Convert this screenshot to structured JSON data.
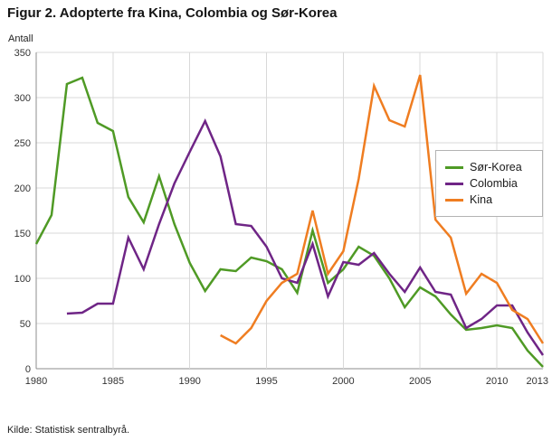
{
  "title": "Figur 2. Adopterte fra Kina, Colombia og Sør-Korea",
  "source": "Kilde: Statistisk sentralbyrå.",
  "chart_data": {
    "type": "line",
    "title": "Figur 2. Adopterte fra Kina, Colombia og Sør-Korea",
    "xlabel": "",
    "ylabel": "Antall",
    "xlim": [
      1980,
      2013
    ],
    "ylim": [
      0,
      350
    ],
    "x_ticks": [
      1980,
      1985,
      1990,
      1995,
      2000,
      2005,
      2010,
      2013
    ],
    "y_ticks": [
      0,
      50,
      100,
      150,
      200,
      250,
      300,
      350
    ],
    "grid": true,
    "legend_position": "inside-right",
    "colors": {
      "grid": "#d9d9d9",
      "axis": "#8c8c8c",
      "text": "#333333"
    },
    "series": [
      {
        "name": "Sør-Korea",
        "color": "#4f9a25",
        "x": [
          1980,
          1981,
          1982,
          1983,
          1984,
          1985,
          1986,
          1987,
          1988,
          1989,
          1990,
          1991,
          1992,
          1993,
          1994,
          1995,
          1996,
          1997,
          1998,
          1999,
          2000,
          2001,
          2002,
          2003,
          2004,
          2005,
          2006,
          2007,
          2008,
          2009,
          2010,
          2011,
          2012,
          2013
        ],
        "values": [
          138,
          170,
          315,
          322,
          272,
          263,
          190,
          162,
          213,
          160,
          117,
          86,
          110,
          108,
          123,
          119,
          110,
          84,
          153,
          95,
          110,
          135,
          125,
          100,
          68,
          90,
          80,
          60,
          43,
          45,
          48,
          45,
          20,
          2
        ]
      },
      {
        "name": "Colombia",
        "color": "#6f2586",
        "x": [
          1982,
          1983,
          1984,
          1985,
          1986,
          1987,
          1988,
          1989,
          1990,
          1991,
          1992,
          1993,
          1994,
          1995,
          1996,
          1997,
          1998,
          1999,
          2000,
          2001,
          2002,
          2003,
          2004,
          2005,
          2006,
          2007,
          2008,
          2009,
          2010,
          2011,
          2012,
          2013
        ],
        "values": [
          61,
          62,
          72,
          72,
          145,
          110,
          160,
          205,
          240,
          274,
          235,
          160,
          158,
          135,
          100,
          95,
          138,
          80,
          118,
          115,
          128,
          105,
          85,
          112,
          85,
          82,
          45,
          55,
          70,
          70,
          40,
          15
        ]
      },
      {
        "name": "Kina",
        "color": "#ef7d21",
        "x": [
          1992,
          1993,
          1994,
          1995,
          1996,
          1997,
          1998,
          1999,
          2000,
          2001,
          2002,
          2003,
          2004,
          2005,
          2006,
          2007,
          2008,
          2009,
          2010,
          2011,
          2012,
          2013
        ],
        "values": [
          37,
          28,
          45,
          75,
          95,
          105,
          175,
          105,
          130,
          210,
          313,
          275,
          268,
          325,
          165,
          145,
          83,
          105,
          95,
          65,
          55,
          28
        ]
      }
    ]
  }
}
